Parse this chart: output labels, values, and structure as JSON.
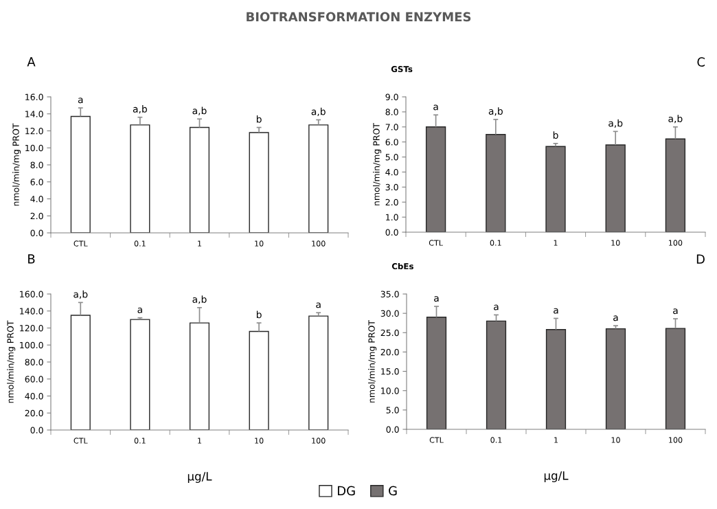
{
  "chart_data": [
    {
      "type": "bar",
      "ylabel": "nmol/min/mg PROT",
      "categories": [
        "CTL",
        "0.1",
        "1",
        "10",
        "100"
      ],
      "ylim": [
        0,
        16
      ],
      "yticks": [
        {
          "value": 0,
          "label": "0.0"
        },
        {
          "value": 2,
          "label": "2.0"
        },
        {
          "value": 4,
          "label": "4.0"
        },
        {
          "value": 6,
          "label": "6.0"
        },
        {
          "value": 8,
          "label": "8.0"
        },
        {
          "value": 10,
          "label": "10.0"
        },
        {
          "value": 12,
          "label": "12.0"
        },
        {
          "value": 14,
          "label": "14.0"
        },
        {
          "value": 16,
          "label": "16.0"
        }
      ],
      "legend": "bottom",
      "grid": false,
      "series": [
        {
          "name": "DG",
          "color": "#ffffff",
          "values": [
            13.7,
            12.7,
            12.4,
            11.8,
            12.7
          ],
          "errors": [
            [
              13.7,
              14.7
            ],
            [
              12.7,
              13.6
            ],
            [
              12.4,
              13.4
            ],
            [
              11.8,
              12.4
            ],
            [
              12.7,
              13.3
            ]
          ]
        }
      ],
      "annotations": [
        "A",
        "BIOTRANSFORMATION ENZYMES",
        {
          "text": "a",
          "x": "CTL",
          "y": 14.7
        },
        {
          "text": "a,b",
          "x": "0.1",
          "y": 13.6
        },
        {
          "text": "a,b",
          "x": "1",
          "y": 13.4
        },
        {
          "text": "b",
          "x": "10",
          "y": 12.4
        },
        {
          "text": "a,b",
          "x": "100",
          "y": 13.3
        }
      ]
    },
    {
      "type": "bar",
      "xlabel": "µg/L",
      "ylabel": "nmol/min/mg PROT",
      "categories": [
        "CTL",
        "0.1",
        "1",
        "10",
        "100"
      ],
      "ylim": [
        0,
        160
      ],
      "yticks": [
        {
          "value": 0,
          "label": "0.0"
        },
        {
          "value": 20,
          "label": "20.0"
        },
        {
          "value": 40,
          "label": "40.0"
        },
        {
          "value": 60,
          "label": "60.0"
        },
        {
          "value": 80,
          "label": "80.0"
        },
        {
          "value": 100,
          "label": "100.0"
        },
        {
          "value": 120,
          "label": "120.0"
        },
        {
          "value": 140,
          "label": "140.0"
        },
        {
          "value": 160,
          "label": "160.0"
        }
      ],
      "grid": false,
      "series": [
        {
          "color": "#ffffff",
          "values": [
            135,
            130,
            126,
            116,
            134
          ],
          "errors": [
            [
              135,
              150
            ],
            [
              130,
              132
            ],
            [
              126,
              144
            ],
            [
              116,
              126
            ],
            [
              134,
              138
            ]
          ]
        }
      ],
      "annotations": [
        "B",
        {
          "text": "a,b",
          "x": "CTL",
          "y": 150
        },
        {
          "text": "a",
          "x": "0.1",
          "y": 132
        },
        {
          "text": "a,b",
          "x": "1",
          "y": 144
        },
        {
          "text": "b",
          "x": "10",
          "y": 126
        },
        {
          "text": "a",
          "x": "100",
          "y": 138
        }
      ]
    },
    {
      "type": "bar",
      "title": "GSTs",
      "ylabel": "nmol/min/mg PROT",
      "categories": [
        "CTL",
        "0.1",
        "1",
        "10",
        "100"
      ],
      "ylim": [
        0,
        9
      ],
      "yticks": [
        {
          "value": 0,
          "label": "0.0"
        },
        {
          "value": 1,
          "label": "1.0"
        },
        {
          "value": 2,
          "label": "2.0"
        },
        {
          "value": 3,
          "label": "3.0"
        },
        {
          "value": 4,
          "label": "4.0"
        },
        {
          "value": 5,
          "label": "5.0"
        },
        {
          "value": 6,
          "label": "6.0"
        },
        {
          "value": 7,
          "label": "7.0"
        },
        {
          "value": 8,
          "label": "8.0"
        },
        {
          "value": 9,
          "label": "9.0"
        }
      ],
      "legend": "bottom",
      "grid": false,
      "series": [
        {
          "name": "G",
          "color": "#767171",
          "values": [
            7.0,
            6.5,
            5.7,
            5.8,
            6.2
          ],
          "errors": [
            [
              7.0,
              7.8
            ],
            [
              6.5,
              7.5
            ],
            [
              5.7,
              5.9
            ],
            [
              5.8,
              6.7
            ],
            [
              6.2,
              7.0
            ]
          ]
        }
      ],
      "annotations": [
        "C",
        {
          "text": "a",
          "x": "CTL",
          "y": 7.8
        },
        {
          "text": "a,b",
          "x": "0.1",
          "y": 7.5
        },
        {
          "text": "b",
          "x": "1",
          "y": 5.9
        },
        {
          "text": "a,b",
          "x": "10",
          "y": 6.7
        },
        {
          "text": "a,b",
          "x": "100",
          "y": 7.0
        }
      ]
    },
    {
      "type": "bar",
      "title": "CbEs",
      "xlabel": "µg/L",
      "ylabel": "nmol/min/mg PROT",
      "categories": [
        "CTL",
        "0.1",
        "1",
        "10",
        "100"
      ],
      "ylim": [
        0,
        35
      ],
      "yticks": [
        {
          "value": 0,
          "label": "0.0"
        },
        {
          "value": 5,
          "label": "5.0"
        },
        {
          "value": 10,
          "label": "10.0"
        },
        {
          "value": 15,
          "label": "15.0"
        },
        {
          "value": 20,
          "label": "20.0"
        },
        {
          "value": 25,
          "label": "25.0"
        },
        {
          "value": 30,
          "label": "30.0"
        },
        {
          "value": 35,
          "label": "35.0"
        }
      ],
      "grid": false,
      "series": [
        {
          "color": "#767171",
          "values": [
            29.0,
            28.0,
            25.8,
            26.0,
            26.1
          ],
          "errors": [
            [
              29.0,
              31.8
            ],
            [
              28.0,
              29.6
            ],
            [
              25.8,
              28.7
            ],
            [
              26.0,
              26.8
            ],
            [
              26.1,
              28.6
            ]
          ]
        }
      ],
      "annotations": [
        "D",
        {
          "text": "a",
          "x": "CTL",
          "y": 31.8
        },
        {
          "text": "a",
          "x": "0.1",
          "y": 29.6
        },
        {
          "text": "a",
          "x": "1",
          "y": 28.7
        },
        {
          "text": "a",
          "x": "10",
          "y": 26.8
        },
        {
          "text": "a",
          "x": "100",
          "y": 28.6
        }
      ]
    }
  ]
}
